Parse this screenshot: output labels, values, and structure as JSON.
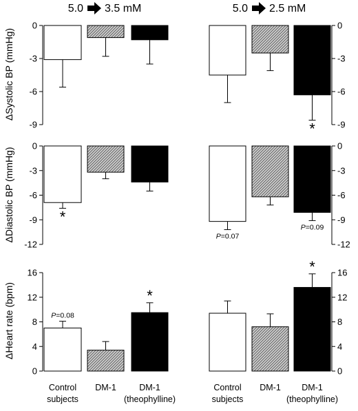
{
  "categories": [
    "Control subjects",
    "DM-1",
    "DM-1 (theophylline)"
  ],
  "category_lines": [
    [
      "Control",
      "subjects"
    ],
    [
      "DM-1"
    ],
    [
      "DM-1",
      "(theophylline)"
    ]
  ],
  "columns": [
    {
      "id": "left",
      "title_from": "5.0",
      "title_to": "3.5 mM",
      "arrow_icon": "right-arrow-icon"
    },
    {
      "id": "right",
      "title_from": "5.0",
      "title_to": "2.5 mM",
      "arrow_icon": "right-arrow-icon"
    }
  ],
  "colors": {
    "control": "#ffffff",
    "dm1": "hatched-gray",
    "theophylline": "#000000"
  },
  "chart_data": [
    {
      "type": "bar",
      "id": "sbp-left",
      "panel": "left",
      "row": "sbp",
      "ylabel": "ΔSystolic BP (mmHg)",
      "ylim": [
        -9,
        0
      ],
      "yticks": [
        0,
        -3,
        -6,
        -9
      ],
      "ytick_labels": [
        "0",
        "-3",
        "-6",
        "-9"
      ],
      "axis_side": "left",
      "orientation": "down",
      "categories": [
        "Control subjects",
        "DM-1",
        "DM-1 (theophylline)"
      ],
      "values": [
        -3.1,
        -1.1,
        -1.3
      ],
      "errors": [
        2.5,
        1.7,
        2.2
      ],
      "annotations": [
        "",
        "",
        ""
      ]
    },
    {
      "type": "bar",
      "id": "sbp-right",
      "panel": "right",
      "row": "sbp",
      "ylabel": "",
      "ylim": [
        -9,
        0
      ],
      "yticks": [
        0,
        -3,
        -6,
        -9
      ],
      "ytick_labels": [
        "0",
        "-3",
        "-6",
        "-9"
      ],
      "axis_side": "right",
      "orientation": "down",
      "categories": [
        "Control subjects",
        "DM-1",
        "DM-1 (theophylline)"
      ],
      "values": [
        -4.5,
        -2.5,
        -6.3
      ],
      "errors": [
        2.5,
        1.6,
        2.3
      ],
      "annotations": [
        "",
        "",
        "*"
      ]
    },
    {
      "type": "bar",
      "id": "dbp-left",
      "panel": "left",
      "row": "dbp",
      "ylabel": "ΔDiastolic BP (mmHg)",
      "ylim": [
        -12,
        0
      ],
      "yticks": [
        0,
        -3,
        -6,
        -9,
        -12
      ],
      "ytick_labels": [
        "0",
        "-3",
        "-6",
        "-9",
        "-12"
      ],
      "axis_side": "left",
      "orientation": "down",
      "categories": [
        "Control subjects",
        "DM-1",
        "DM-1 (theophylline)"
      ],
      "values": [
        -6.9,
        -3.2,
        -4.4
      ],
      "errors": [
        0.7,
        0.8,
        1.1
      ],
      "annotations": [
        "*",
        "",
        ""
      ]
    },
    {
      "type": "bar",
      "id": "dbp-right",
      "panel": "right",
      "row": "dbp",
      "ylabel": "",
      "ylim": [
        -12,
        0
      ],
      "yticks": [
        0,
        -3,
        -6,
        -9,
        -12
      ],
      "ytick_labels": [
        "0",
        "-3",
        "-6",
        "-9",
        "-12"
      ],
      "axis_side": "right",
      "orientation": "down",
      "categories": [
        "Control subjects",
        "DM-1",
        "DM-1 (theophylline)"
      ],
      "values": [
        -9.2,
        -6.2,
        -8.1
      ],
      "errors": [
        1.0,
        1.0,
        1.0
      ],
      "annotations": [
        "P=0.07",
        "",
        "P=0.09"
      ]
    },
    {
      "type": "bar",
      "id": "hr-left",
      "panel": "left",
      "row": "hr",
      "ylabel": "ΔHeart rate (bpm)",
      "ylim": [
        0,
        16
      ],
      "yticks": [
        0,
        4,
        8,
        12,
        16
      ],
      "ytick_labels": [
        "0",
        "4",
        "8",
        "12",
        "16"
      ],
      "axis_side": "left",
      "orientation": "up",
      "categories": [
        "Control subjects",
        "DM-1",
        "DM-1 (theophylline)"
      ],
      "values": [
        7.0,
        3.4,
        9.5
      ],
      "errors": [
        1.1,
        1.4,
        1.6
      ],
      "annotations": [
        "P=0.08",
        "",
        "*"
      ]
    },
    {
      "type": "bar",
      "id": "hr-right",
      "panel": "right",
      "row": "hr",
      "ylabel": "",
      "ylim": [
        0,
        16
      ],
      "yticks": [
        0,
        4,
        8,
        12,
        16
      ],
      "ytick_labels": [
        "0",
        "4",
        "8",
        "12",
        "16"
      ],
      "axis_side": "right",
      "orientation": "up",
      "categories": [
        "Control subjects",
        "DM-1",
        "DM-1 (theophylline)"
      ],
      "values": [
        9.4,
        7.2,
        13.6
      ],
      "errors": [
        2.0,
        2.1,
        2.2
      ],
      "annotations": [
        "",
        "",
        "*"
      ]
    }
  ]
}
